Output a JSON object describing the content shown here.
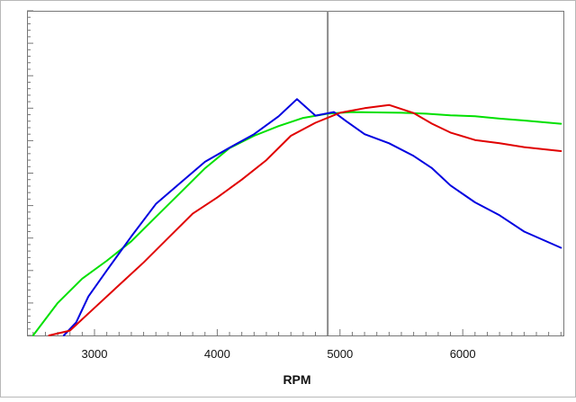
{
  "chart_data": {
    "type": "line",
    "title": "",
    "xlabel": "RPM",
    "ylabel": "",
    "xlim": [
      2450,
      6820
    ],
    "ylim": [
      0,
      100
    ],
    "xticks": [
      3000,
      4000,
      5000,
      6000
    ],
    "xtick_labels": [
      "3000",
      "4000",
      "5000",
      "6000"
    ],
    "ytick_labels": [],
    "grid": false,
    "legend": "none",
    "vertical_marker_x": 4900,
    "series": [
      {
        "color": "#00e000",
        "x": [
          2500,
          2700,
          2900,
          3100,
          3300,
          3500,
          3700,
          3900,
          4100,
          4300,
          4500,
          4700,
          4900,
          5100,
          5300,
          5500,
          5700,
          5900,
          6100,
          6300,
          6500,
          6800
        ],
        "y": [
          0,
          10,
          17.5,
          23,
          29,
          36.5,
          44,
          51.5,
          57.7,
          61.5,
          64.5,
          67,
          68.3,
          68.8,
          68.7,
          68.6,
          68.3,
          67.8,
          67.5,
          66.8,
          66.2,
          65.2
        ]
      },
      {
        "color": "#0000e0",
        "x": [
          2750,
          2850,
          2950,
          3100,
          3300,
          3500,
          3700,
          3900,
          4100,
          4300,
          4500,
          4650,
          4800,
          4950,
          5050,
          5200,
          5400,
          5600,
          5750,
          5900,
          6100,
          6300,
          6500,
          6800
        ],
        "y": [
          0,
          4,
          12,
          20,
          30.5,
          40.5,
          47,
          53.5,
          57.8,
          62,
          67.5,
          72.8,
          67.7,
          68.8,
          66,
          62,
          59.2,
          55.3,
          51.5,
          46.2,
          41,
          37,
          32,
          27
        ]
      },
      {
        "color": "#e00000",
        "x": [
          2630,
          2800,
          3000,
          3200,
          3400,
          3600,
          3800,
          4000,
          4200,
          4400,
          4600,
          4800,
          5000,
          5200,
          5400,
          5600,
          5750,
          5900,
          6100,
          6300,
          6500,
          6800
        ],
        "y": [
          0,
          1.5,
          8.5,
          15.5,
          22.5,
          30,
          37.5,
          42.5,
          48,
          54,
          61.5,
          65.5,
          68.6,
          70,
          71,
          68.5,
          65.2,
          62.5,
          60.2,
          59.2,
          58,
          56.8
        ]
      }
    ]
  }
}
